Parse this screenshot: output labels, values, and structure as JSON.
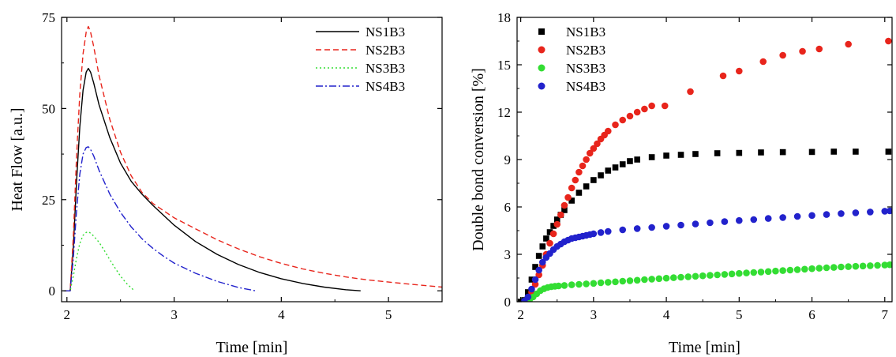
{
  "chart_data": [
    {
      "type": "line",
      "title": "",
      "xlabel": "Time [min]",
      "ylabel": "Heat Flow [a.u.]",
      "xlim": [
        1.95,
        5.5
      ],
      "ylim": [
        -3,
        75
      ],
      "xticks": [
        2,
        3,
        4,
        5
      ],
      "yticks": [
        0,
        25,
        50,
        75
      ],
      "grid": false,
      "legend": "top-right",
      "series": [
        {
          "name": "NS1B3",
          "color": "#000000",
          "dash": "solid",
          "x": [
            1.97,
            2.03,
            2.06,
            2.09,
            2.12,
            2.15,
            2.18,
            2.2,
            2.22,
            2.25,
            2.3,
            2.4,
            2.5,
            2.6,
            2.7,
            2.8,
            3.0,
            3.2,
            3.4,
            3.6,
            3.8,
            4.0,
            4.2,
            4.4,
            4.6,
            4.74
          ],
          "y": [
            0,
            0,
            12,
            30,
            45,
            55,
            60,
            61,
            60,
            57,
            51,
            42,
            35,
            30,
            26.5,
            23.5,
            18,
            13.5,
            10,
            7.2,
            5,
            3.3,
            2,
            1,
            0.3,
            0
          ]
        },
        {
          "name": "NS2B3",
          "color": "#e8251c",
          "dash": "dashed",
          "x": [
            1.97,
            2.03,
            2.06,
            2.09,
            2.12,
            2.15,
            2.18,
            2.2,
            2.22,
            2.25,
            2.3,
            2.4,
            2.5,
            2.6,
            2.7,
            2.8,
            3.0,
            3.2,
            3.4,
            3.6,
            3.8,
            4.0,
            4.2,
            4.4,
            4.6,
            4.8,
            5.0,
            5.2,
            5.5
          ],
          "y": [
            0,
            0,
            15,
            37,
            54,
            65,
            71,
            72.5,
            71,
            67,
            59,
            47,
            38,
            31.5,
            27,
            24,
            20,
            17,
            14,
            11.5,
            9.3,
            7.5,
            6,
            4.8,
            3.8,
            3,
            2.4,
            1.8,
            1
          ]
        },
        {
          "name": "NS3B3",
          "color": "#33dd33",
          "dash": "dotted",
          "x": [
            1.97,
            2.03,
            2.06,
            2.09,
            2.12,
            2.15,
            2.18,
            2.2,
            2.22,
            2.25,
            2.3,
            2.35,
            2.4,
            2.45,
            2.5,
            2.55,
            2.6,
            2.63
          ],
          "y": [
            0,
            0,
            4,
            9,
            13,
            15.2,
            16,
            16.2,
            15.8,
            15,
            13.3,
            11,
            8.5,
            6.2,
            4,
            2.2,
            0.8,
            0
          ]
        },
        {
          "name": "NS4B3",
          "color": "#2222cc",
          "dash": "dashdot",
          "x": [
            1.97,
            2.03,
            2.06,
            2.09,
            2.12,
            2.15,
            2.18,
            2.2,
            2.22,
            2.25,
            2.3,
            2.4,
            2.5,
            2.6,
            2.7,
            2.8,
            2.9,
            3.0,
            3.2,
            3.4,
            3.6,
            3.76
          ],
          "y": [
            0,
            0,
            9,
            22,
            32,
            37.5,
            39.3,
            39.5,
            38.8,
            37,
            33,
            26.5,
            21.5,
            17.5,
            14.3,
            11.7,
            9.5,
            7.6,
            4.8,
            2.6,
            0.9,
            0
          ]
        }
      ]
    },
    {
      "type": "scatter",
      "title": "",
      "xlabel": "Time [min]",
      "ylabel": "Double bond conversion [%]",
      "xlim": [
        1.95,
        7.1
      ],
      "ylim": [
        0,
        18
      ],
      "xticks": [
        2,
        3,
        4,
        5,
        6,
        7
      ],
      "yticks": [
        0,
        3,
        6,
        9,
        12,
        15,
        18
      ],
      "grid": false,
      "legend": "top-left",
      "series": [
        {
          "name": "NS1B3",
          "color": "#000000",
          "marker": "square",
          "x": [
            2.0,
            2.05,
            2.1,
            2.15,
            2.2,
            2.25,
            2.3,
            2.35,
            2.4,
            2.45,
            2.5,
            2.55,
            2.6,
            2.7,
            2.8,
            2.9,
            3.0,
            3.1,
            3.2,
            3.3,
            3.4,
            3.5,
            3.6,
            3.8,
            4.0,
            4.2,
            4.4,
            4.7,
            5.0,
            5.3,
            5.6,
            6.0,
            6.3,
            6.6,
            7.05
          ],
          "y": [
            0,
            0.1,
            0.6,
            1.4,
            2.2,
            2.9,
            3.5,
            4.0,
            4.4,
            4.8,
            5.2,
            5.5,
            5.8,
            6.4,
            6.9,
            7.3,
            7.7,
            8.0,
            8.3,
            8.5,
            8.7,
            8.9,
            9.0,
            9.15,
            9.25,
            9.3,
            9.35,
            9.4,
            9.42,
            9.45,
            9.47,
            9.48,
            9.5,
            9.5,
            9.5
          ]
        },
        {
          "name": "NS2B3",
          "color": "#e8251c",
          "marker": "circle",
          "x": [
            2.1,
            2.15,
            2.2,
            2.25,
            2.3,
            2.35,
            2.4,
            2.45,
            2.5,
            2.55,
            2.6,
            2.65,
            2.7,
            2.75,
            2.8,
            2.85,
            2.9,
            2.95,
            3.0,
            3.05,
            3.1,
            3.15,
            3.2,
            3.3,
            3.4,
            3.5,
            3.6,
            3.7,
            3.8,
            3.98,
            4.33,
            4.78,
            5.0,
            5.33,
            5.6,
            5.87,
            6.1,
            6.5,
            7.05
          ],
          "y": [
            0.2,
            0.6,
            1.1,
            1.7,
            2.3,
            3.0,
            3.7,
            4.3,
            4.9,
            5.5,
            6.1,
            6.6,
            7.2,
            7.7,
            8.2,
            8.6,
            9.0,
            9.4,
            9.7,
            10.0,
            10.3,
            10.55,
            10.8,
            11.2,
            11.5,
            11.75,
            12.0,
            12.2,
            12.4,
            12.4,
            13.3,
            14.3,
            14.6,
            15.2,
            15.6,
            15.85,
            16.0,
            16.3,
            16.5
          ]
        },
        {
          "name": "NS3B3",
          "color": "#33dd33",
          "marker": "circle",
          "x": [
            2.12,
            2.17,
            2.22,
            2.27,
            2.32,
            2.37,
            2.42,
            2.47,
            2.52,
            2.6,
            2.7,
            2.8,
            2.9,
            3.0,
            3.1,
            3.2,
            3.3,
            3.4,
            3.5,
            3.6,
            3.7,
            3.8,
            3.9,
            4.0,
            4.1,
            4.2,
            4.3,
            4.4,
            4.5,
            4.6,
            4.7,
            4.8,
            4.9,
            5.0,
            5.1,
            5.2,
            5.3,
            5.4,
            5.5,
            5.6,
            5.7,
            5.8,
            5.9,
            6.0,
            6.1,
            6.2,
            6.3,
            6.4,
            6.5,
            6.6,
            6.7,
            6.8,
            6.9,
            7.0,
            7.07
          ],
          "y": [
            0.1,
            0.3,
            0.5,
            0.7,
            0.82,
            0.9,
            0.95,
            0.98,
            1.0,
            1.03,
            1.07,
            1.1,
            1.13,
            1.16,
            1.2,
            1.23,
            1.26,
            1.3,
            1.33,
            1.36,
            1.4,
            1.43,
            1.46,
            1.49,
            1.52,
            1.55,
            1.58,
            1.61,
            1.64,
            1.67,
            1.7,
            1.73,
            1.76,
            1.79,
            1.82,
            1.85,
            1.88,
            1.91,
            1.94,
            1.97,
            2.0,
            2.03,
            2.06,
            2.09,
            2.12,
            2.15,
            2.17,
            2.2,
            2.22,
            2.24,
            2.26,
            2.28,
            2.3,
            2.32,
            2.34
          ]
        },
        {
          "name": "NS4B3",
          "color": "#2222cc",
          "marker": "circle",
          "x": [
            2.05,
            2.1,
            2.15,
            2.2,
            2.25,
            2.3,
            2.35,
            2.4,
            2.45,
            2.5,
            2.55,
            2.6,
            2.65,
            2.7,
            2.75,
            2.8,
            2.85,
            2.9,
            2.95,
            3.0,
            3.1,
            3.2,
            3.4,
            3.6,
            3.8,
            4.0,
            4.2,
            4.4,
            4.6,
            4.8,
            5.0,
            5.2,
            5.4,
            5.6,
            5.8,
            6.0,
            6.2,
            6.4,
            6.6,
            6.8,
            7.0,
            7.07
          ],
          "y": [
            0.05,
            0.3,
            0.8,
            1.4,
            2.0,
            2.5,
            2.8,
            3.05,
            3.3,
            3.5,
            3.65,
            3.8,
            3.9,
            4.0,
            4.05,
            4.1,
            4.15,
            4.2,
            4.25,
            4.3,
            4.38,
            4.45,
            4.55,
            4.63,
            4.7,
            4.78,
            4.85,
            4.92,
            5.0,
            5.07,
            5.14,
            5.2,
            5.27,
            5.33,
            5.4,
            5.46,
            5.52,
            5.58,
            5.63,
            5.68,
            5.73,
            5.75
          ]
        }
      ]
    }
  ]
}
